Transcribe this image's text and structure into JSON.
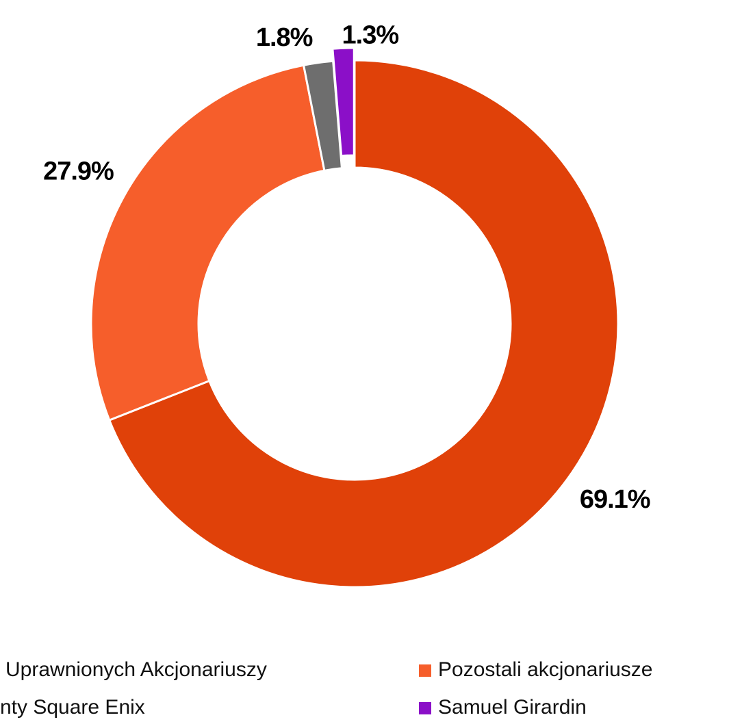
{
  "chart_data": {
    "type": "pie",
    "categories": [
      "Uprawnionych Akcjonariuszy",
      "Pozostali akcjonariusze",
      "nty Square Enix",
      "Samuel Girardin"
    ],
    "values": [
      69.1,
      27.9,
      1.8,
      1.3
    ],
    "value_labels": [
      "69.1%",
      "27.9%",
      "1.8%",
      "1.3%"
    ],
    "colors": [
      "#e04109",
      "#f65e2b",
      "#6e6e6e",
      "#8b0fc8"
    ],
    "donut": true
  }
}
